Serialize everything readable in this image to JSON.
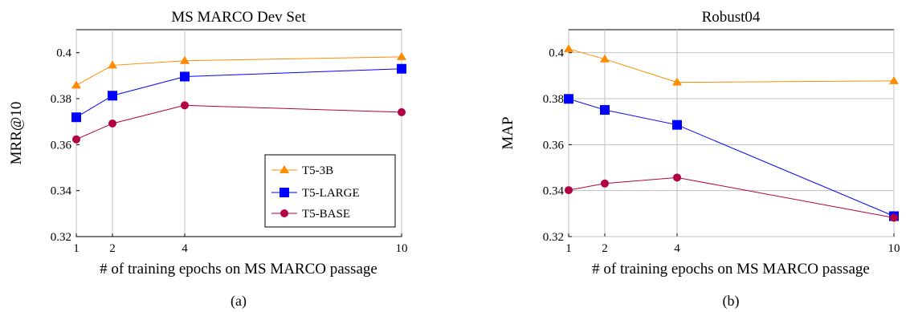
{
  "chart_data": [
    {
      "type": "line",
      "title": "MS MARCO Dev Set",
      "xlabel": "# of training epochs on MS MARCO passage",
      "ylabel": "MRR@10",
      "caption": "(a)",
      "x": [
        1,
        2,
        4,
        10
      ],
      "xticks": [
        "1",
        "2",
        "4",
        "10"
      ],
      "yticks": [
        "0.32",
        "0.34",
        "0.36",
        "0.38",
        "0.4"
      ],
      "xlim": [
        1,
        10
      ],
      "ylim": [
        0.32,
        0.41
      ],
      "grid": "vertical at x ticks",
      "legend": "bottom-right",
      "series": [
        {
          "name": "T5-3B",
          "color": "#ff8c00",
          "marker": "triangle",
          "values": [
            0.3858,
            0.3945,
            0.3965,
            0.3982
          ]
        },
        {
          "name": "T5-LARGE",
          "color": "#0000ff",
          "marker": "square",
          "values": [
            0.3719,
            0.3813,
            0.3896,
            0.393
          ]
        },
        {
          "name": "T5-BASE",
          "color": "#b30045",
          "marker": "circle",
          "values": [
            0.3623,
            0.3692,
            0.3771,
            0.3741
          ]
        }
      ]
    },
    {
      "type": "line",
      "title": "Robust04",
      "xlabel": "# of training epochs on MS MARCO passage",
      "ylabel": "MAP",
      "caption": "(b)",
      "x": [
        1,
        2,
        4,
        10
      ],
      "xticks": [
        "1",
        "2",
        "4",
        "10"
      ],
      "yticks": [
        "0.32",
        "0.34",
        "0.36",
        "0.38",
        "0.4"
      ],
      "xlim": [
        1,
        10
      ],
      "ylim": [
        0.32,
        0.41
      ],
      "grid": "vertical at x ticks and horizontal at y ticks",
      "legend": "none",
      "series": [
        {
          "name": "T5-3B",
          "color": "#ff8c00",
          "marker": "triangle",
          "values": [
            0.4016,
            0.3972,
            0.3871,
            0.3877
          ]
        },
        {
          "name": "T5-LARGE",
          "color": "#0000ff",
          "marker": "square",
          "values": [
            0.3799,
            0.3751,
            0.3686,
            0.3289
          ]
        },
        {
          "name": "T5-BASE",
          "color": "#b30045",
          "marker": "circle",
          "values": [
            0.3402,
            0.3431,
            0.3457,
            0.3282
          ]
        }
      ]
    }
  ]
}
